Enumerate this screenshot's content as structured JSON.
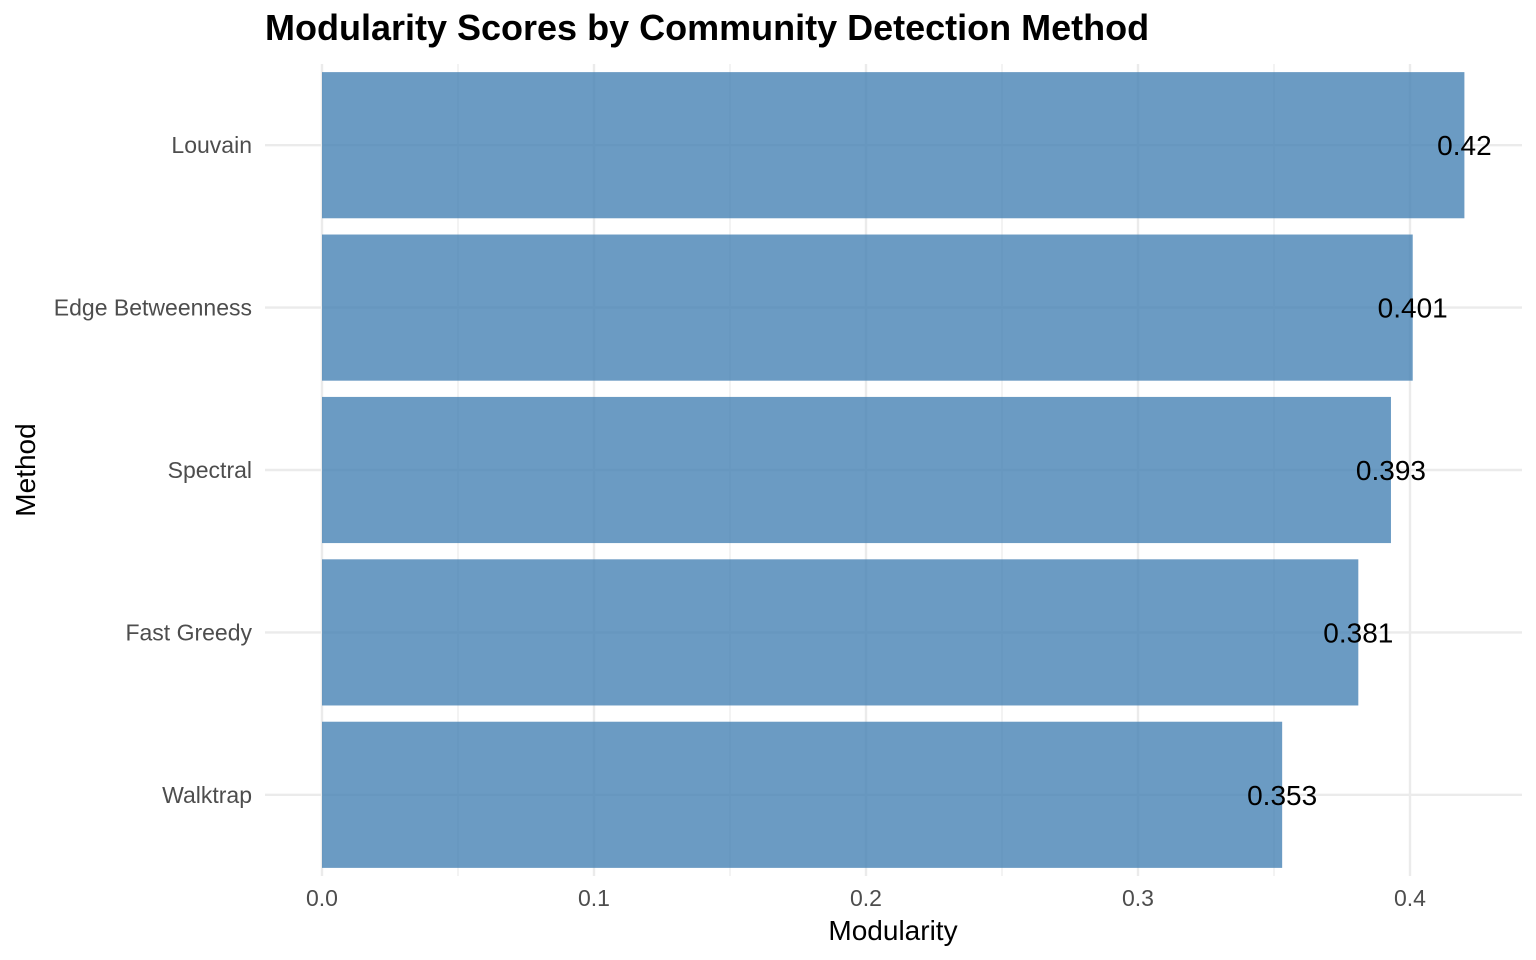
{
  "chart_data": {
    "type": "bar",
    "orientation": "horizontal",
    "title": "Modularity Scores by Community Detection Method",
    "xlabel": "Modularity",
    "ylabel": "Method",
    "categories": [
      "Louvain",
      "Edge Betweenness",
      "Spectral",
      "Fast Greedy",
      "Walktrap"
    ],
    "values": [
      0.42,
      0.401,
      0.393,
      0.381,
      0.353
    ],
    "data_labels": [
      "0.42",
      "0.401",
      "0.393",
      "0.381",
      "0.353"
    ],
    "xlim": [
      0,
      0.44
    ],
    "xticks": [
      0.0,
      0.1,
      0.2,
      0.3,
      0.4
    ],
    "xtick_labels": [
      "0.0",
      "0.1",
      "0.2",
      "0.3",
      "0.4"
    ],
    "grid": true,
    "legend": "none",
    "colors": {
      "bar": "#4682b4",
      "grid": "#ebebeb",
      "tick_text": "#4d4d4d",
      "text": "#000000"
    }
  }
}
